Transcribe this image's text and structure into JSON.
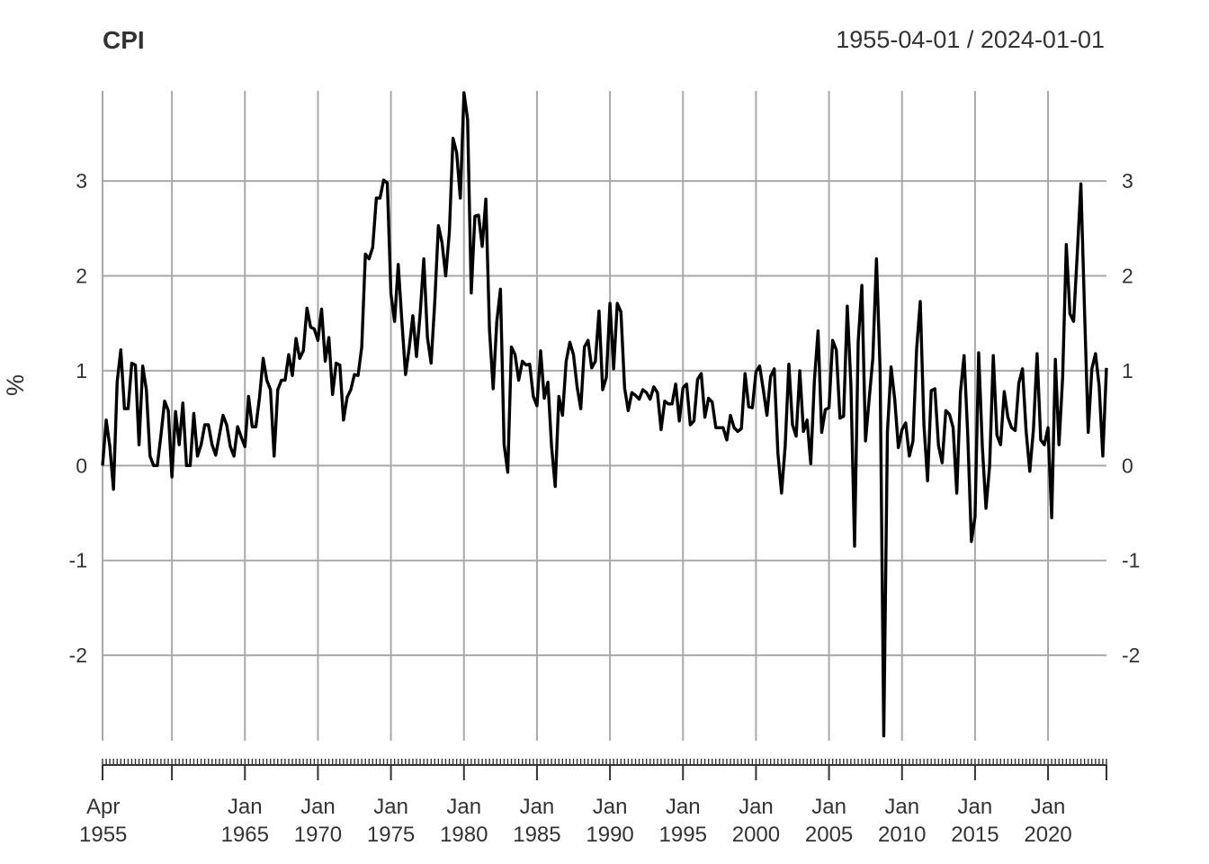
{
  "chart_data": {
    "type": "line",
    "title": "CPI",
    "date_range": "1955-04-01 / 2024-01-01",
    "ylabel": "%",
    "xlabel": "",
    "x_start": "1955-04-01",
    "x_end": "2024-01-01",
    "frequency": "quarterly",
    "ylim": [
      -2.9,
      3.95
    ],
    "grid": true,
    "legend": "none",
    "line_color": "#000000",
    "y_ticks": [
      {
        "value": 3,
        "label": "3"
      },
      {
        "value": 2,
        "label": "2"
      },
      {
        "value": 1,
        "label": "1"
      },
      {
        "value": 0,
        "label": "0"
      },
      {
        "value": -1,
        "label": "-1"
      },
      {
        "value": -2,
        "label": "-2"
      }
    ],
    "x_ticks": [
      {
        "date": "1955-04-01",
        "line1": "Apr",
        "line2": "1955"
      },
      {
        "date": "1960-01-01",
        "line1": "",
        "line2": ""
      },
      {
        "date": "1965-01-01",
        "line1": "Jan",
        "line2": "1965"
      },
      {
        "date": "1970-01-01",
        "line1": "Jan",
        "line2": "1970"
      },
      {
        "date": "1975-01-01",
        "line1": "Jan",
        "line2": "1975"
      },
      {
        "date": "1980-01-01",
        "line1": "Jan",
        "line2": "1980"
      },
      {
        "date": "1985-01-01",
        "line1": "Jan",
        "line2": "1985"
      },
      {
        "date": "1990-01-01",
        "line1": "Jan",
        "line2": "1990"
      },
      {
        "date": "1995-01-01",
        "line1": "Jan",
        "line2": "1995"
      },
      {
        "date": "2000-01-01",
        "line1": "Jan",
        "line2": "2000"
      },
      {
        "date": "2005-01-01",
        "line1": "Jan",
        "line2": "2005"
      },
      {
        "date": "2010-01-01",
        "line1": "Jan",
        "line2": "2010"
      },
      {
        "date": "2015-01-01",
        "line1": "Jan",
        "line2": "2015"
      },
      {
        "date": "2020-01-01",
        "line1": "Jan",
        "line2": "2020"
      }
    ],
    "series": [
      {
        "name": "CPI",
        "values": [
          0.0,
          0.48,
          0.2,
          -0.25,
          0.88,
          1.22,
          0.6,
          0.6,
          1.08,
          1.06,
          0.22,
          1.05,
          0.8,
          0.1,
          0.0,
          0.0,
          0.32,
          0.68,
          0.58,
          -0.12,
          0.57,
          0.22,
          0.66,
          0.0,
          0.0,
          0.55,
          0.1,
          0.22,
          0.43,
          0.43,
          0.22,
          0.11,
          0.32,
          0.53,
          0.43,
          0.2,
          0.1,
          0.41,
          0.3,
          0.2,
          0.73,
          0.41,
          0.41,
          0.72,
          1.13,
          0.9,
          0.8,
          0.1,
          0.8,
          0.9,
          0.9,
          1.17,
          0.95,
          1.34,
          1.13,
          1.21,
          1.66,
          1.46,
          1.44,
          1.32,
          1.65,
          1.1,
          1.35,
          0.75,
          1.08,
          1.06,
          0.48,
          0.72,
          0.8,
          0.96,
          0.95,
          1.25,
          2.23,
          2.18,
          2.3,
          2.82,
          2.82,
          3.01,
          2.98,
          1.81,
          1.52,
          2.12,
          1.52,
          0.96,
          1.24,
          1.58,
          1.15,
          1.6,
          2.18,
          1.35,
          1.08,
          1.72,
          2.53,
          2.35,
          2.0,
          2.46,
          3.45,
          3.3,
          2.82,
          3.93,
          3.65,
          1.82,
          2.63,
          2.64,
          2.31,
          2.81,
          1.43,
          0.81,
          1.52,
          1.86,
          0.22,
          -0.07,
          1.25,
          1.17,
          0.9,
          1.1,
          1.06,
          1.07,
          0.73,
          0.63,
          1.21,
          0.71,
          0.88,
          0.2,
          -0.22,
          0.73,
          0.53,
          1.1,
          1.3,
          1.17,
          0.83,
          0.6,
          1.25,
          1.32,
          1.03,
          1.1,
          1.63,
          0.8,
          0.93,
          1.71,
          1.02,
          1.71,
          1.62,
          0.82,
          0.58,
          0.77,
          0.74,
          0.7,
          0.8,
          0.77,
          0.7,
          0.83,
          0.77,
          0.38,
          0.68,
          0.65,
          0.65,
          0.86,
          0.47,
          0.82,
          0.86,
          0.43,
          0.47,
          0.91,
          0.97,
          0.51,
          0.71,
          0.67,
          0.4,
          0.4,
          0.4,
          0.27,
          0.53,
          0.4,
          0.36,
          0.39,
          0.97,
          0.62,
          0.61,
          0.99,
          1.05,
          0.8,
          0.53,
          0.94,
          1.02,
          0.13,
          -0.29,
          0.21,
          1.07,
          0.43,
          0.31,
          1.0,
          0.36,
          0.48,
          0.02,
          0.9,
          1.42,
          0.35,
          0.59,
          0.61,
          1.32,
          1.22,
          0.5,
          0.52,
          1.68,
          0.85,
          -0.85,
          1.31,
          1.9,
          0.26,
          0.7,
          1.13,
          2.18,
          1.0,
          -2.85,
          0.35,
          1.04,
          0.7,
          0.19,
          0.38,
          0.45,
          0.1,
          0.26,
          1.23,
          1.73,
          0.43,
          -0.16,
          0.79,
          0.81,
          0.21,
          0.03,
          0.58,
          0.54,
          0.4,
          -0.29,
          0.77,
          1.16,
          0.33,
          -0.8,
          -0.54,
          1.19,
          0.2,
          -0.45,
          0.0,
          1.16,
          0.32,
          0.22,
          0.78,
          0.51,
          0.4,
          0.37,
          0.87,
          1.02,
          0.36,
          -0.06,
          0.38,
          1.18,
          0.27,
          0.22,
          0.4,
          -0.55,
          1.12,
          0.22,
          0.93,
          2.33,
          1.6,
          1.52,
          2.23,
          2.97,
          1.63,
          0.35,
          1.02,
          1.18,
          0.84,
          0.1,
          1.03
        ]
      }
    ]
  }
}
